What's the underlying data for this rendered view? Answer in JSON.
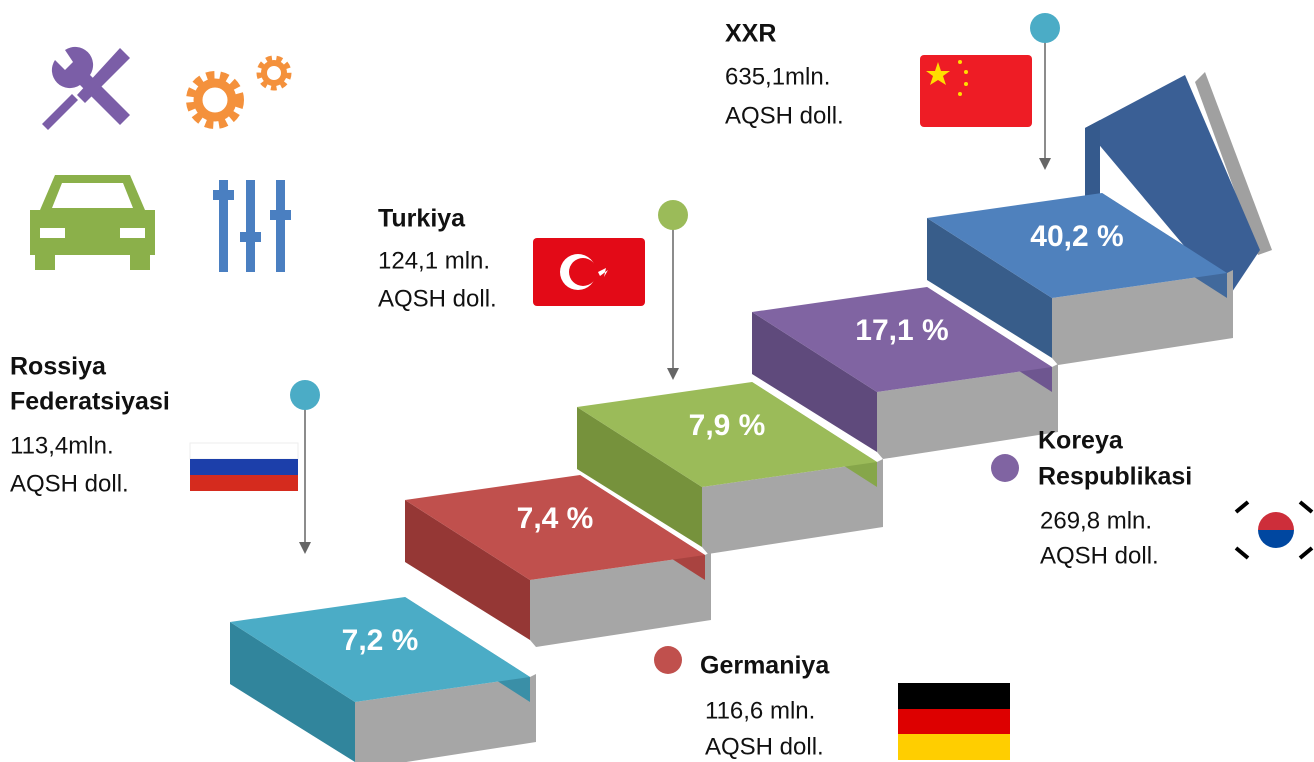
{
  "steps": [
    {
      "percent": "7,2 %"
    },
    {
      "percent": "7,4 %"
    },
    {
      "percent": "7,9 %"
    },
    {
      "percent": "17,1 %"
    },
    {
      "percent": "40,2 %"
    }
  ],
  "countries": [
    {
      "name": [
        "Rossiya",
        "Federatsiyasi"
      ],
      "value": "113,4mln.",
      "unit": "AQSH doll."
    },
    {
      "name": [
        "Turkiya"
      ],
      "value": "124,1 mln.",
      "unit": "AQSH doll."
    },
    {
      "name": [
        "XXR"
      ],
      "value": "635,1mln.",
      "unit": "AQSH doll."
    },
    {
      "name": [
        "Koreya",
        "Respublikasi"
      ],
      "value": "269,8 mln.",
      "unit": "AQSH doll."
    },
    {
      "name": [
        "Germaniya"
      ],
      "value": "116,6 mln.",
      "unit": "AQSH doll."
    }
  ]
}
